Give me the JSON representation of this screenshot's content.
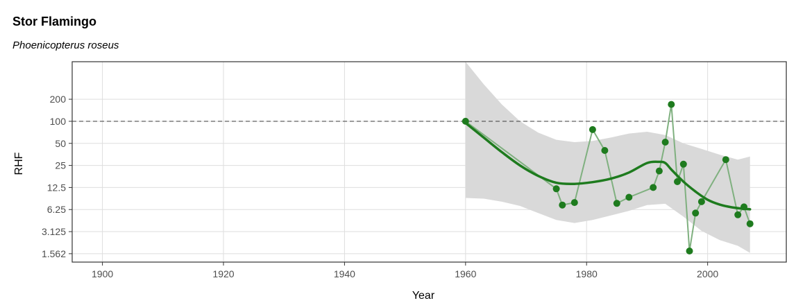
{
  "chart_data": {
    "type": "line",
    "title": "Stor Flamingo",
    "subtitle": "Phoenicopterus roseus",
    "xlabel": "Year",
    "ylabel": "RHF",
    "xlim": [
      1895,
      2013
    ],
    "ylim": [
      1.2,
      650
    ],
    "y_scale": "log",
    "x_ticks": [
      1900,
      1920,
      1940,
      1960,
      1980,
      2000
    ],
    "x_tick_labels": [
      "1900",
      "1920",
      "1940",
      "1960",
      "1980",
      "2000"
    ],
    "y_ticks": [
      1.5625,
      3.125,
      6.25,
      12.5,
      25,
      50,
      100,
      200
    ],
    "y_tick_labels": [
      "1.562",
      "3.125",
      "6.25",
      "12.5",
      "25",
      "50",
      "100",
      "200"
    ],
    "grid": true,
    "reference_line": 100,
    "colors": {
      "observed": "#7fb07f",
      "points": "#1e7b1e",
      "trend": "#1e7b1e",
      "ribbon": "#d9d9d9",
      "reference": "#4d4d4d"
    },
    "series": [
      {
        "kind": "observed",
        "x": [
          1960,
          1975,
          1976,
          1978,
          1981,
          1983,
          1985,
          1987,
          1991,
          1992,
          1993,
          1994,
          1995,
          1996,
          1997,
          1998,
          1999,
          2003,
          2005,
          2006,
          2007
        ],
        "y": [
          100,
          12,
          7.2,
          7.8,
          77,
          40,
          7.6,
          9.2,
          12.5,
          21,
          52,
          170,
          15,
          26,
          1.7,
          5.6,
          8,
          30,
          5.3,
          6.8,
          4
        ]
      },
      {
        "kind": "trend",
        "x": [
          1960,
          1963,
          1966,
          1969,
          1972,
          1975,
          1978,
          1981,
          1984,
          1987,
          1990,
          1992,
          1993,
          1994,
          1996,
          1998,
          2000,
          2002,
          2004,
          2006,
          2007
        ],
        "y": [
          95,
          60,
          38,
          25,
          18,
          14.5,
          14,
          14.8,
          16.5,
          20,
          27,
          28,
          27,
          22,
          15,
          11,
          8.5,
          7.3,
          6.7,
          6.4,
          6.3
        ]
      },
      {
        "kind": "ci",
        "x": [
          1960,
          1963,
          1966,
          1969,
          1972,
          1975,
          1978,
          1981,
          1984,
          1987,
          1990,
          1993,
          1996,
          1999,
          2002,
          2005,
          2007
        ],
        "upper": [
          650,
          320,
          170,
          100,
          70,
          56,
          52,
          54,
          60,
          68,
          72,
          65,
          50,
          42,
          35,
          30,
          33
        ],
        "lower": [
          9,
          8.8,
          8,
          7,
          5.6,
          4.5,
          4.1,
          4.5,
          5.2,
          6,
          7.2,
          7.5,
          5,
          3.2,
          2.4,
          2.0,
          1.6
        ]
      }
    ]
  }
}
